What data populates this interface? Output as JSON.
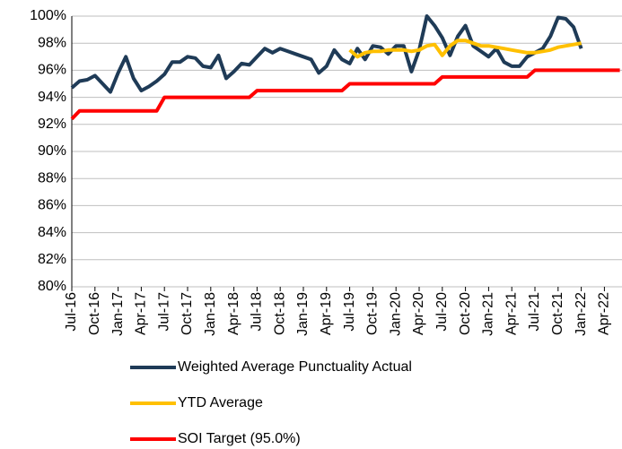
{
  "chart_data": {
    "type": "line",
    "categories": [
      "Jul-16",
      null,
      null,
      "Oct-16",
      null,
      null,
      "Jan-17",
      null,
      null,
      "Apr-17",
      null,
      null,
      "Jul-17",
      null,
      null,
      "Oct-17",
      null,
      null,
      "Jan-18",
      null,
      null,
      "Apr-18",
      null,
      null,
      "Jul-18",
      null,
      null,
      "Oct-18",
      null,
      null,
      "Jan-19",
      null,
      null,
      "Apr-19",
      null,
      null,
      "Jul-19",
      null,
      null,
      "Oct-19",
      null,
      null,
      "Jan-20",
      null,
      null,
      "Apr-20",
      null,
      null,
      "Jul-20",
      null,
      null,
      "Oct-20",
      null,
      null,
      "Jan-21",
      null,
      null,
      "Apr-21",
      null,
      null,
      "Jul-21",
      null,
      null,
      "Oct-21",
      null,
      null,
      "Jan-22",
      null,
      null,
      "Apr-22",
      null,
      null
    ],
    "series": [
      {
        "name": "Weighted Average Punctuality Actual",
        "color": "#1f3b57",
        "values": [
          94.7,
          95.2,
          95.3,
          95.6,
          95.0,
          94.4,
          95.8,
          97.0,
          95.4,
          94.5,
          94.8,
          95.2,
          95.7,
          96.6,
          96.6,
          97.0,
          96.9,
          96.3,
          96.2,
          97.1,
          95.4,
          95.9,
          96.5,
          96.4,
          97.0,
          97.6,
          97.3,
          97.6,
          97.4,
          97.2,
          97.0,
          96.8,
          95.8,
          96.3,
          97.5,
          96.8,
          96.5,
          97.6,
          96.8,
          97.8,
          97.7,
          97.2,
          97.8,
          97.8,
          95.9,
          97.5,
          100.0,
          99.3,
          98.4,
          97.1,
          98.5,
          99.3,
          97.8,
          97.4,
          97.0,
          97.6,
          96.6,
          96.3,
          96.3,
          97.0,
          97.3,
          97.6,
          98.5,
          99.9,
          99.8,
          99.2,
          97.6,
          null,
          null,
          null,
          null,
          null
        ]
      },
      {
        "name": "YTD Average",
        "color": "#ffc000",
        "values": [
          null,
          null,
          null,
          null,
          null,
          null,
          null,
          null,
          null,
          null,
          null,
          null,
          null,
          null,
          null,
          null,
          null,
          null,
          null,
          null,
          null,
          null,
          null,
          null,
          null,
          null,
          null,
          null,
          null,
          null,
          null,
          null,
          null,
          null,
          null,
          null,
          97.5,
          97.0,
          97.3,
          97.4,
          97.4,
          97.5,
          97.5,
          97.5,
          97.4,
          97.5,
          97.8,
          97.9,
          97.1,
          97.8,
          98.2,
          98.2,
          98.0,
          97.8,
          97.8,
          97.7,
          97.6,
          97.5,
          97.4,
          97.3,
          97.3,
          97.4,
          97.5,
          97.7,
          97.8,
          97.9,
          98.0,
          null,
          null,
          null,
          null,
          null
        ]
      },
      {
        "name": "SOI Target (95.0%)",
        "color": "#ff0000",
        "values": [
          92.4,
          93,
          93,
          93,
          93,
          93,
          93,
          93,
          93,
          93,
          93,
          93,
          94,
          94,
          94,
          94,
          94,
          94,
          94,
          94,
          94,
          94,
          94,
          94,
          94.5,
          94.5,
          94.5,
          94.5,
          94.5,
          94.5,
          94.5,
          94.5,
          94.5,
          94.5,
          94.5,
          94.5,
          95,
          95,
          95,
          95,
          95,
          95,
          95,
          95,
          95,
          95,
          95,
          95,
          95.5,
          95.5,
          95.5,
          95.5,
          95.5,
          95.5,
          95.5,
          95.5,
          95.5,
          95.5,
          95.5,
          95.5,
          96,
          96,
          96,
          96,
          96,
          96,
          96,
          96,
          96,
          96,
          96,
          96
        ]
      }
    ],
    "ylim": [
      80,
      100
    ],
    "yticks": [
      {
        "value": 80,
        "label": "80%"
      },
      {
        "value": 82,
        "label": "82%"
      },
      {
        "value": 84,
        "label": "84%"
      },
      {
        "value": 86,
        "label": "86%"
      },
      {
        "value": 88,
        "label": "88%"
      },
      {
        "value": 90,
        "label": "90%"
      },
      {
        "value": 92,
        "label": "92%"
      },
      {
        "value": 94,
        "label": "94%"
      },
      {
        "value": 96,
        "label": "96%"
      },
      {
        "value": 98,
        "label": "98%"
      },
      {
        "value": 100,
        "label": "100%"
      }
    ],
    "grid": true
  }
}
